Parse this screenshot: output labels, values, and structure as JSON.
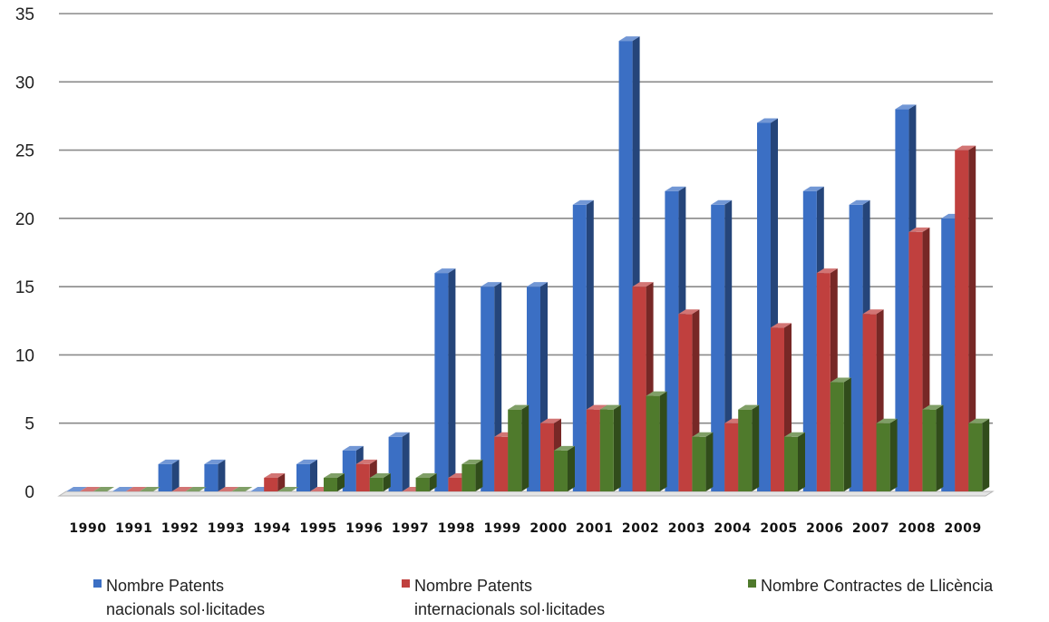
{
  "chart_data": {
    "type": "bar",
    "categories": [
      "1990",
      "1991",
      "1992",
      "1993",
      "1994",
      "1995",
      "1996",
      "1997",
      "1998",
      "1999",
      "2000",
      "2001",
      "2002",
      "2003",
      "2004",
      "2005",
      "2006",
      "2007",
      "2008",
      "2009"
    ],
    "series": [
      {
        "name": "Nombre Patents nacionals sol·licitades",
        "legend_lines": [
          "Nombre Patents",
          "nacionals sol·licitades"
        ],
        "color": "#3b6fc4",
        "values": [
          0,
          0,
          2,
          2,
          0,
          2,
          3,
          4,
          16,
          15,
          15,
          21,
          33,
          22,
          21,
          27,
          22,
          21,
          28,
          20
        ]
      },
      {
        "name": "Nombre Patents internacionals sol·licitades",
        "legend_lines": [
          "Nombre Patents",
          "internacionals sol·licitades"
        ],
        "color": "#c0403e",
        "values": [
          0,
          0,
          0,
          0,
          1,
          0,
          2,
          0,
          1,
          4,
          5,
          6,
          15,
          13,
          5,
          12,
          16,
          13,
          19,
          25
        ]
      },
      {
        "name": "Nombre Contractes de Llicència",
        "legend_lines": [
          "Nombre Contractes de Llicència"
        ],
        "color": "#4f7a2c",
        "values": [
          0,
          0,
          0,
          0,
          0,
          1,
          1,
          1,
          2,
          6,
          3,
          6,
          7,
          4,
          6,
          4,
          8,
          5,
          6,
          5
        ]
      }
    ],
    "yticks": [
      "0",
      "5",
      "10",
      "15",
      "20",
      "25",
      "30",
      "35"
    ],
    "ylim": [
      0,
      35
    ],
    "grid": true,
    "legend_position": "bottom",
    "title": "",
    "xlabel": "",
    "ylabel": ""
  }
}
